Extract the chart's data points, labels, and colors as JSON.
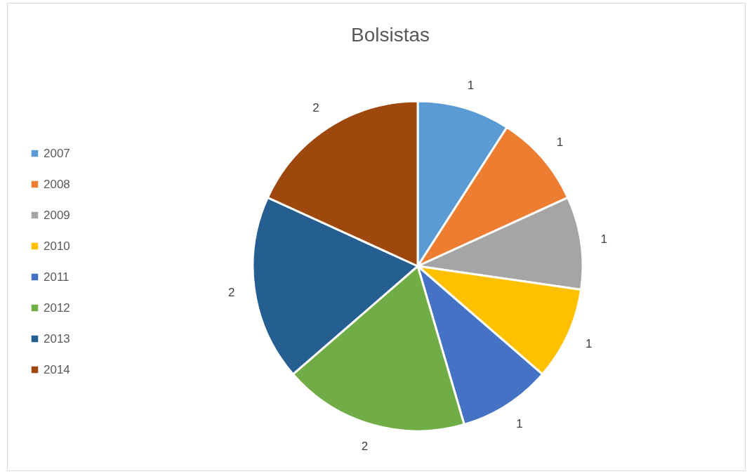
{
  "chart_data": {
    "type": "pie",
    "title": "Bolsistas",
    "categories": [
      "2007",
      "2008",
      "2009",
      "2010",
      "2011",
      "2012",
      "2013",
      "2014"
    ],
    "values": [
      1,
      1,
      1,
      1,
      1,
      2,
      2,
      2
    ],
    "colors": [
      "#5b9bd5",
      "#ed7d31",
      "#a5a5a5",
      "#ffc000",
      "#4472c4",
      "#70ad47",
      "#255e91",
      "#9e480e"
    ],
    "data_labels": true,
    "legend": "left"
  }
}
